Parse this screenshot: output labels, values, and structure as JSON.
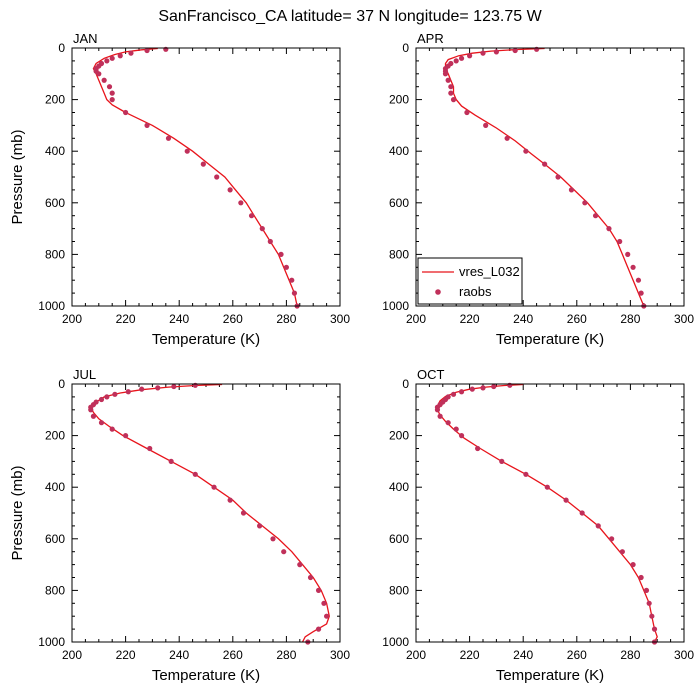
{
  "figure": {
    "title": "SanFrancisco_CA  latitude= 37 N longitude= 123.75 W"
  },
  "colors": {
    "model_line": "#e8141b",
    "obs_marker": "#c0305a",
    "axis": "#000000"
  },
  "legend": {
    "placement": "lower-left of APR panel",
    "entries": [
      {
        "label": "vres_L032",
        "symbol": "line"
      },
      {
        "label": "raobs",
        "symbol": "dot"
      }
    ]
  },
  "chart_data": [
    {
      "type": "line",
      "panel": "JAN",
      "xlabel": "Temperature (K)",
      "ylabel": "Pressure (mb)",
      "xlim": [
        200,
        300
      ],
      "ylim": [
        1000,
        0
      ],
      "y_inverted": true,
      "x_ticks": [
        200,
        220,
        240,
        260,
        280,
        300
      ],
      "y_ticks": [
        0,
        200,
        400,
        600,
        800,
        1000
      ],
      "series": [
        {
          "name": "vres_L032",
          "kind": "line",
          "points": [
            [
              232,
              2
            ],
            [
              226,
              7
            ],
            [
              220,
              15
            ],
            [
              216,
              25
            ],
            [
              212,
              40
            ],
            [
              209,
              60
            ],
            [
              208,
              80
            ],
            [
              209,
              100
            ],
            [
              210,
              125
            ],
            [
              211,
              150
            ],
            [
              212,
              175
            ],
            [
              213,
              200
            ],
            [
              215,
              220
            ],
            [
              220,
              250
            ],
            [
              230,
              300
            ],
            [
              238,
              350
            ],
            [
              245,
              400
            ],
            [
              251,
              450
            ],
            [
              257,
              500
            ],
            [
              261,
              550
            ],
            [
              265,
              600
            ],
            [
              268,
              650
            ],
            [
              271,
              700
            ],
            [
              274,
              750
            ],
            [
              277,
              800
            ],
            [
              279,
              850
            ],
            [
              281,
              900
            ],
            [
              283,
              950
            ],
            [
              284,
              1000
            ]
          ]
        },
        {
          "name": "raobs",
          "kind": "marker",
          "points": [
            [
              235,
              5
            ],
            [
              228,
              10
            ],
            [
              222,
              20
            ],
            [
              218,
              30
            ],
            [
              215,
              40
            ],
            [
              213,
              50
            ],
            [
              211,
              60
            ],
            [
              210,
              70
            ],
            [
              209,
              80
            ],
            [
              209,
              90
            ],
            [
              210,
              100
            ],
            [
              212,
              125
            ],
            [
              214,
              150
            ],
            [
              215,
              175
            ],
            [
              215,
              200
            ],
            [
              220,
              250
            ],
            [
              228,
              300
            ],
            [
              236,
              350
            ],
            [
              243,
              400
            ],
            [
              249,
              450
            ],
            [
              254,
              500
            ],
            [
              259,
              550
            ],
            [
              263,
              600
            ],
            [
              267,
              650
            ],
            [
              271,
              700
            ],
            [
              274,
              750
            ],
            [
              278,
              800
            ],
            [
              280,
              850
            ],
            [
              282,
              900
            ],
            [
              283,
              950
            ],
            [
              284,
              1000
            ]
          ]
        }
      ]
    },
    {
      "type": "line",
      "panel": "APR",
      "xlabel": "Temperature (K)",
      "ylabel": "Pressure (mb)",
      "xlim": [
        200,
        300
      ],
      "ylim": [
        1000,
        0
      ],
      "y_inverted": true,
      "x_ticks": [
        200,
        220,
        240,
        260,
        280,
        300
      ],
      "y_ticks": [
        0,
        200,
        400,
        600,
        800,
        1000
      ],
      "series": [
        {
          "name": "vres_L032",
          "kind": "line",
          "points": [
            [
              248,
              2
            ],
            [
              238,
              6
            ],
            [
              228,
              12
            ],
            [
              221,
              20
            ],
            [
              216,
              30
            ],
            [
              212,
              45
            ],
            [
              211,
              60
            ],
            [
              211,
              80
            ],
            [
              212,
              100
            ],
            [
              213,
              125
            ],
            [
              214,
              150
            ],
            [
              214,
              175
            ],
            [
              215,
              200
            ],
            [
              217,
              225
            ],
            [
              222,
              260
            ],
            [
              230,
              310
            ],
            [
              237,
              360
            ],
            [
              243,
              410
            ],
            [
              248,
              450
            ],
            [
              254,
              500
            ],
            [
              259,
              550
            ],
            [
              264,
              600
            ],
            [
              268,
              650
            ],
            [
              272,
              700
            ],
            [
              275,
              750
            ],
            [
              277,
              800
            ],
            [
              279,
              850
            ],
            [
              281,
              900
            ],
            [
              283,
              950
            ],
            [
              285,
              1000
            ]
          ]
        },
        {
          "name": "raobs",
          "kind": "marker",
          "points": [
            [
              245,
              5
            ],
            [
              237,
              10
            ],
            [
              230,
              15
            ],
            [
              225,
              20
            ],
            [
              220,
              30
            ],
            [
              217,
              40
            ],
            [
              215,
              50
            ],
            [
              213,
              60
            ],
            [
              212,
              70
            ],
            [
              211,
              80
            ],
            [
              211,
              90
            ],
            [
              211,
              100
            ],
            [
              212,
              125
            ],
            [
              213,
              150
            ],
            [
              213,
              175
            ],
            [
              214,
              200
            ],
            [
              219,
              250
            ],
            [
              226,
              300
            ],
            [
              234,
              350
            ],
            [
              241,
              400
            ],
            [
              248,
              450
            ],
            [
              253,
              500
            ],
            [
              258,
              550
            ],
            [
              263,
              600
            ],
            [
              267,
              650
            ],
            [
              272,
              700
            ],
            [
              276,
              750
            ],
            [
              279,
              800
            ],
            [
              281,
              850
            ],
            [
              283,
              900
            ],
            [
              284,
              950
            ],
            [
              285,
              1000
            ]
          ]
        }
      ]
    },
    {
      "type": "line",
      "panel": "JUL",
      "xlabel": "Temperature (K)",
      "ylabel": "Pressure (mb)",
      "xlim": [
        200,
        300
      ],
      "ylim": [
        1000,
        0
      ],
      "y_inverted": true,
      "x_ticks": [
        200,
        220,
        240,
        260,
        280,
        300
      ],
      "y_ticks": [
        0,
        200,
        400,
        600,
        800,
        1000
      ],
      "series": [
        {
          "name": "vres_L032",
          "kind": "line",
          "points": [
            [
              256,
              2
            ],
            [
              246,
              6
            ],
            [
              236,
              12
            ],
            [
              226,
              22
            ],
            [
              218,
              35
            ],
            [
              212,
              50
            ],
            [
              209,
              70
            ],
            [
              207,
              90
            ],
            [
              208,
              110
            ],
            [
              210,
              135
            ],
            [
              214,
              165
            ],
            [
              219,
              200
            ],
            [
              228,
              250
            ],
            [
              237,
              300
            ],
            [
              246,
              350
            ],
            [
              253,
              400
            ],
            [
              260,
              450
            ],
            [
              265,
              500
            ],
            [
              271,
              550
            ],
            [
              277,
              600
            ],
            [
              282,
              650
            ],
            [
              286,
              700
            ],
            [
              290,
              750
            ],
            [
              293,
              800
            ],
            [
              295,
              850
            ],
            [
              296,
              900
            ],
            [
              295,
              930
            ],
            [
              290,
              960
            ],
            [
              287,
              980
            ],
            [
              286,
              1000
            ]
          ]
        },
        {
          "name": "raobs",
          "kind": "marker",
          "points": [
            [
              246,
              5
            ],
            [
              238,
              10
            ],
            [
              232,
              15
            ],
            [
              226,
              20
            ],
            [
              221,
              30
            ],
            [
              216,
              40
            ],
            [
              213,
              50
            ],
            [
              211,
              60
            ],
            [
              209,
              70
            ],
            [
              208,
              80
            ],
            [
              207,
              90
            ],
            [
              207,
              100
            ],
            [
              208,
              125
            ],
            [
              211,
              150
            ],
            [
              215,
              175
            ],
            [
              220,
              200
            ],
            [
              229,
              250
            ],
            [
              237,
              300
            ],
            [
              246,
              350
            ],
            [
              253,
              400
            ],
            [
              259,
              450
            ],
            [
              264,
              500
            ],
            [
              270,
              550
            ],
            [
              275,
              600
            ],
            [
              279,
              650
            ],
            [
              285,
              700
            ],
            [
              289,
              750
            ],
            [
              292,
              800
            ],
            [
              294,
              850
            ],
            [
              295,
              900
            ],
            [
              292,
              950
            ],
            [
              288,
              1000
            ]
          ]
        }
      ]
    },
    {
      "type": "line",
      "panel": "OCT",
      "xlabel": "Temperature (K)",
      "ylabel": "Pressure (mb)",
      "xlim": [
        200,
        300
      ],
      "ylim": [
        1000,
        0
      ],
      "y_inverted": true,
      "x_ticks": [
        200,
        220,
        240,
        260,
        280,
        300
      ],
      "y_ticks": [
        0,
        200,
        400,
        600,
        800,
        1000
      ],
      "series": [
        {
          "name": "vres_L032",
          "kind": "line",
          "points": [
            [
              240,
              2
            ],
            [
              233,
              6
            ],
            [
              226,
              12
            ],
            [
              220,
              20
            ],
            [
              215,
              32
            ],
            [
              211,
              48
            ],
            [
              209,
              65
            ],
            [
              208,
              85
            ],
            [
              208,
              100
            ],
            [
              209,
              120
            ],
            [
              211,
              145
            ],
            [
              214,
              175
            ],
            [
              218,
              210
            ],
            [
              224,
              250
            ],
            [
              232,
              300
            ],
            [
              241,
              350
            ],
            [
              249,
              400
            ],
            [
              256,
              450
            ],
            [
              262,
              500
            ],
            [
              268,
              550
            ],
            [
              272,
              600
            ],
            [
              276,
              650
            ],
            [
              280,
              700
            ],
            [
              283,
              750
            ],
            [
              285,
              800
            ],
            [
              287,
              850
            ],
            [
              288,
              900
            ],
            [
              289,
              950
            ],
            [
              290,
              980
            ],
            [
              289,
              1000
            ]
          ]
        },
        {
          "name": "raobs",
          "kind": "marker",
          "points": [
            [
              235,
              5
            ],
            [
              229,
              10
            ],
            [
              225,
              15
            ],
            [
              221,
              20
            ],
            [
              217,
              30
            ],
            [
              214,
              40
            ],
            [
              212,
              50
            ],
            [
              211,
              60
            ],
            [
              210,
              70
            ],
            [
              209,
              80
            ],
            [
              208,
              90
            ],
            [
              208,
              100
            ],
            [
              209,
              125
            ],
            [
              212,
              150
            ],
            [
              215,
              175
            ],
            [
              217,
              200
            ],
            [
              223,
              250
            ],
            [
              232,
              300
            ],
            [
              241,
              350
            ],
            [
              249,
              400
            ],
            [
              256,
              450
            ],
            [
              262,
              500
            ],
            [
              268,
              550
            ],
            [
              273,
              600
            ],
            [
              277,
              650
            ],
            [
              281,
              700
            ],
            [
              284,
              750
            ],
            [
              286,
              800
            ],
            [
              287,
              850
            ],
            [
              288,
              900
            ],
            [
              289,
              950
            ],
            [
              289,
              1000
            ]
          ]
        }
      ]
    }
  ]
}
